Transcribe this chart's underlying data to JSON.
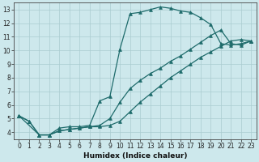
{
  "xlabel": "Humidex (Indice chaleur)",
  "xlim": [
    -0.5,
    23.5
  ],
  "ylim": [
    3.5,
    13.5
  ],
  "xticks": [
    0,
    1,
    2,
    3,
    4,
    5,
    6,
    7,
    8,
    9,
    10,
    11,
    12,
    13,
    14,
    15,
    16,
    17,
    18,
    19,
    20,
    21,
    22,
    23
  ],
  "yticks": [
    4,
    5,
    6,
    7,
    8,
    9,
    10,
    11,
    12,
    13
  ],
  "bg_color": "#cde8ec",
  "grid_color": "#aaccd0",
  "line_color": "#1e6b6b",
  "lines": [
    {
      "x": [
        0,
        1,
        2,
        3,
        4,
        5,
        6,
        7,
        8,
        9,
        10,
        11,
        12,
        13,
        14,
        15,
        16,
        17,
        18,
        19,
        20,
        21,
        22,
        23
      ],
      "y": [
        5.2,
        4.8,
        3.8,
        3.8,
        4.3,
        4.4,
        4.4,
        4.5,
        6.3,
        6.6,
        10.1,
        12.7,
        12.8,
        13.0,
        13.2,
        13.1,
        12.9,
        12.8,
        12.4,
        11.9,
        10.5,
        10.4,
        10.5,
        10.7
      ]
    },
    {
      "x": [
        0,
        1,
        2,
        3,
        4,
        5,
        6,
        7,
        8,
        9,
        10,
        11,
        12,
        13,
        14,
        15,
        16,
        17,
        18,
        19,
        20,
        21,
        22,
        23
      ],
      "y": [
        5.2,
        4.8,
        3.8,
        3.8,
        4.1,
        4.2,
        4.3,
        4.4,
        4.5,
        5.0,
        6.2,
        7.2,
        7.8,
        8.3,
        8.7,
        9.2,
        9.6,
        10.1,
        10.6,
        11.1,
        11.5,
        10.5,
        10.4,
        10.7
      ]
    },
    {
      "x": [
        0,
        2,
        3,
        4,
        5,
        6,
        7,
        8,
        9,
        10,
        11,
        12,
        13,
        14,
        15,
        16,
        17,
        18,
        19,
        20,
        21,
        22,
        23
      ],
      "y": [
        5.2,
        3.8,
        3.8,
        4.1,
        4.2,
        4.3,
        4.4,
        4.4,
        4.5,
        4.8,
        5.5,
        6.2,
        6.8,
        7.4,
        8.0,
        8.5,
        9.0,
        9.5,
        9.9,
        10.3,
        10.7,
        10.8,
        10.7
      ]
    }
  ],
  "figsize": [
    3.2,
    2.0
  ],
  "dpi": 100
}
